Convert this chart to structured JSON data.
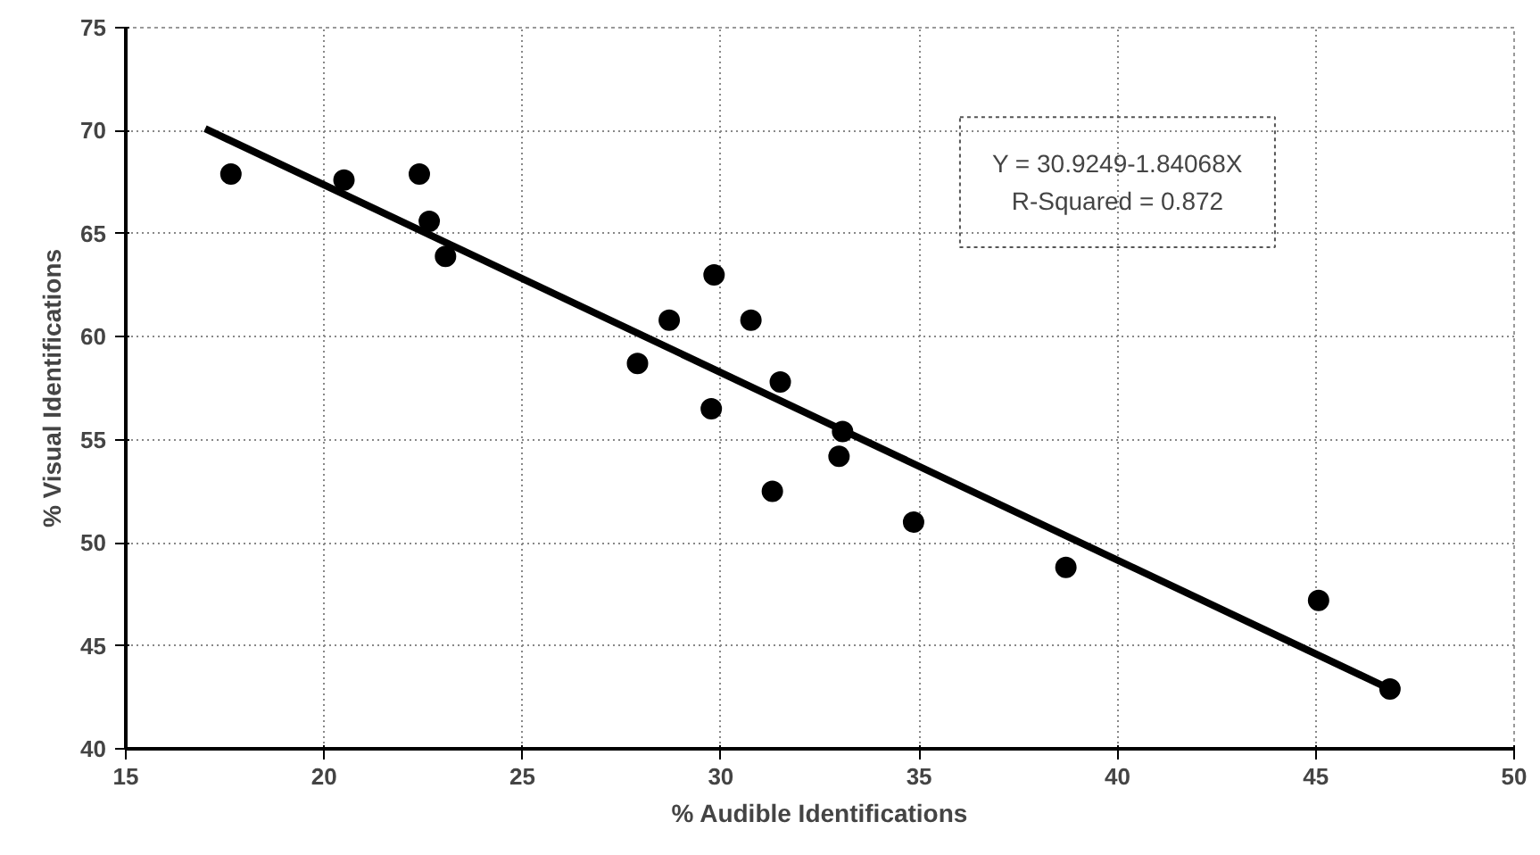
{
  "chart_data": {
    "type": "scatter",
    "xlabel": "% Audible Identifications",
    "ylabel": "% Visual Identifications",
    "xlim": [
      15,
      50
    ],
    "xticks": [
      15,
      20,
      25,
      30,
      35,
      40,
      45,
      50
    ],
    "ylim": [
      40,
      75
    ],
    "yticks": [
      40,
      45,
      50,
      55,
      60,
      65,
      70,
      75
    ],
    "grid": true,
    "annotations": [
      "Y = 30.9249-1.84068X",
      "R-Squared = 0.872"
    ],
    "series": [
      {
        "marker": "circle",
        "color": "#000000",
        "x": [
          17.65,
          20.5,
          22.4,
          22.65,
          23.06,
          27.9,
          28.7,
          29.76,
          29.83,
          30.76,
          31.3,
          31.5,
          32.98,
          33.07,
          34.86,
          38.7,
          45.07,
          46.87
        ],
        "values": [
          67.9,
          67.6,
          67.9,
          65.6,
          63.9,
          58.7,
          60.8,
          56.5,
          63.0,
          60.8,
          52.5,
          57.8,
          54.2,
          55.4,
          51.0,
          48.8,
          47.2,
          42.9
        ]
      },
      {
        "type": "line",
        "marker": "none",
        "color": "#000000",
        "x": [
          17.0,
          46.87
        ],
        "values": [
          70.1,
          42.9
        ]
      }
    ]
  }
}
